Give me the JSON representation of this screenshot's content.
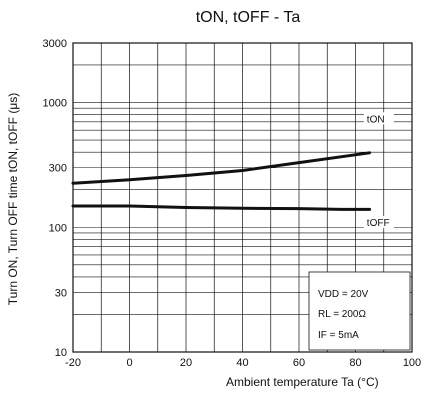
{
  "chart_data": {
    "type": "line",
    "title": "tON, tOFF - Ta",
    "xlabel": "Ambient temperature Ta (°C)",
    "ylabel": "Turn ON, Turn OFF time tON, tOFF (μs)",
    "xlim": [
      -20,
      100
    ],
    "ylim": [
      10,
      3000
    ],
    "y_scale": "log",
    "grid": true,
    "x_ticks": [
      {
        "value": -20,
        "label": "-20"
      },
      {
        "value": 0,
        "label": "0"
      },
      {
        "value": 20,
        "label": "20"
      },
      {
        "value": 40,
        "label": "40"
      },
      {
        "value": 60,
        "label": "60"
      },
      {
        "value": 80,
        "label": "80"
      },
      {
        "value": 100,
        "label": "100"
      }
    ],
    "y_ticks": [
      {
        "value": 10,
        "label": "10"
      },
      {
        "value": 30,
        "label": "30"
      },
      {
        "value": 100,
        "label": "100"
      },
      {
        "value": 300,
        "label": "300"
      },
      {
        "value": 1000,
        "label": "1000"
      },
      {
        "value": 3000,
        "label": "3000"
      }
    ],
    "series": [
      {
        "name": "tON",
        "label_at": {
          "x": 84,
          "y": 720
        },
        "points": [
          [
            -20,
            225
          ],
          [
            0,
            240
          ],
          [
            20,
            260
          ],
          [
            40,
            285
          ],
          [
            60,
            330
          ],
          [
            85,
            395
          ]
        ]
      },
      {
        "name": "tOFF",
        "label_at": {
          "x": 84,
          "y": 106
        },
        "points": [
          [
            -20,
            148
          ],
          [
            0,
            148
          ],
          [
            20,
            144
          ],
          [
            40,
            142
          ],
          [
            60,
            141
          ],
          [
            75,
            139
          ],
          [
            85,
            139
          ]
        ]
      }
    ],
    "conditions": [
      "VDD = 20V",
      "RL = 200Ω",
      "IF = 5mA"
    ],
    "conditions_position": "bottom-right"
  }
}
